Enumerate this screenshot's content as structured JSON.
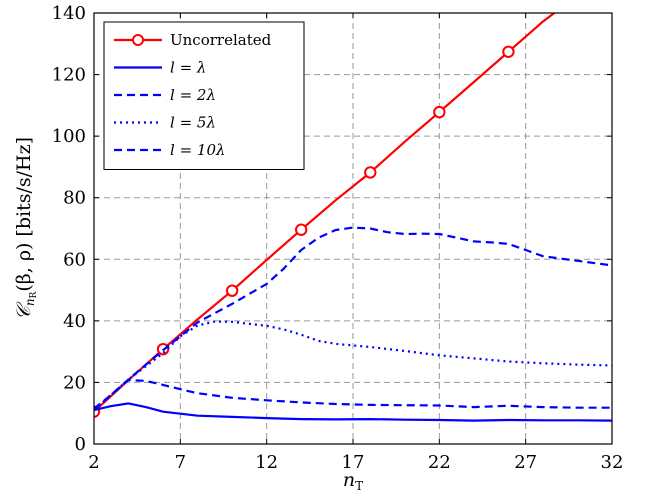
{
  "chart_data": {
    "type": "line",
    "xlabel": "n_T",
    "xlabel_main": "n",
    "xlabel_sub": "T",
    "ylabel": "C_{n_R}(β, ρ) [bits/s/Hz]",
    "ylabel_main": "𝒞",
    "ylabel_sub_n": "n",
    "ylabel_sub_r": "R",
    "ylabel_args": "(β, ρ)",
    "ylabel_units": "[bits/s/Hz]",
    "xlim": [
      2,
      32
    ],
    "ylim": [
      0,
      140
    ],
    "xticks": [
      2,
      7,
      12,
      17,
      22,
      27,
      32
    ],
    "yticks": [
      0,
      20,
      40,
      60,
      80,
      100,
      120,
      140
    ],
    "grid": true,
    "legend_position": "top-left",
    "series": [
      {
        "name": "Uncorrelated",
        "color": "#ff0000",
        "style": "solid",
        "marker": "circle",
        "markers_x": [
          2,
          6,
          10,
          14,
          18,
          22,
          26
        ],
        "x": [
          2,
          4,
          6,
          8,
          10,
          12,
          14,
          16,
          18,
          20,
          22,
          24,
          26,
          28,
          29
        ],
        "y": [
          10.5,
          20.8,
          30.8,
          40.5,
          49.8,
          59.8,
          69.6,
          79.2,
          88.2,
          98.2,
          107.8,
          117.6,
          127.4,
          137.2,
          141.5
        ]
      },
      {
        "name": "l = λ",
        "color": "#0000ff",
        "style": "solid",
        "x": [
          2,
          3,
          4,
          5,
          6,
          8,
          10,
          12,
          14,
          16,
          18,
          20,
          22,
          24,
          26,
          28,
          30,
          32
        ],
        "y": [
          11,
          12.3,
          13.2,
          12,
          10.5,
          9.2,
          8.8,
          8.4,
          8.1,
          8.0,
          8.1,
          7.9,
          7.8,
          7.6,
          7.8,
          7.7,
          7.7,
          7.6
        ]
      },
      {
        "name": "l = 2λ",
        "color": "#0000ff",
        "style": "dashed",
        "x": [
          2,
          3,
          4,
          5,
          6,
          7,
          8,
          10,
          12,
          14,
          16,
          18,
          20,
          22,
          24,
          26,
          28,
          30,
          32
        ],
        "y": [
          11.5,
          16,
          20.8,
          20.5,
          19.2,
          17.8,
          16.5,
          15,
          14.2,
          13.5,
          13,
          12.7,
          12.6,
          12.5,
          12,
          12.4,
          12,
          11.8,
          11.8
        ]
      },
      {
        "name": "l = 5λ",
        "color": "#0000ff",
        "style": "dotted",
        "x": [
          2,
          4,
          6,
          7,
          8,
          9,
          10,
          11,
          12,
          13,
          14,
          15,
          16,
          18,
          20,
          22,
          24,
          26,
          28,
          30,
          32
        ],
        "y": [
          11,
          21,
          29.5,
          35,
          38.5,
          39.8,
          39.7,
          39,
          38.4,
          37.2,
          35.5,
          33.5,
          32.5,
          31.5,
          30.2,
          28.8,
          27.8,
          26.8,
          26.2,
          25.8,
          25.5
        ]
      },
      {
        "name": "l = 10λ",
        "color": "#0000ff",
        "style": "dashed",
        "x": [
          2,
          4,
          6,
          8,
          10,
          12,
          13,
          14,
          15,
          16,
          17,
          18,
          19,
          20,
          21,
          22,
          23,
          24,
          25,
          26,
          27,
          28,
          30,
          32
        ],
        "y": [
          11,
          21,
          30.5,
          39.5,
          45.5,
          52,
          57,
          63,
          67,
          69.5,
          70.3,
          70,
          68.8,
          68.2,
          68.3,
          68.2,
          67,
          65.8,
          65.5,
          65,
          63,
          61,
          59.5,
          58
        ]
      }
    ]
  }
}
